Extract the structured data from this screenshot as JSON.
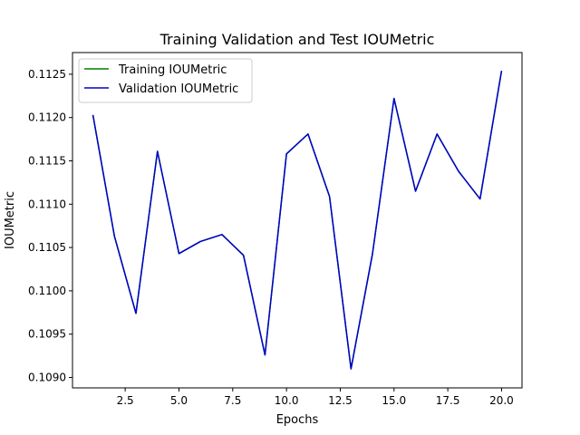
{
  "chart_data": {
    "type": "line",
    "title": "Training Validation and Test IOUMetric",
    "xlabel": "Epochs",
    "ylabel": "IOUMetric",
    "xlim": [
      0.05,
      20.95
    ],
    "ylim": [
      0.10888,
      0.11275
    ],
    "x_ticks": [
      2.5,
      5.0,
      7.5,
      10.0,
      12.5,
      15.0,
      17.5,
      20.0
    ],
    "x_tick_labels": [
      "2.5",
      "5.0",
      "7.5",
      "10.0",
      "12.5",
      "15.0",
      "17.5",
      "20.0"
    ],
    "y_ticks": [
      0.109,
      0.1095,
      0.11,
      0.1105,
      0.111,
      0.1115,
      0.112,
      0.1125
    ],
    "y_tick_labels": [
      "0.1090",
      "0.1095",
      "0.1100",
      "0.1105",
      "0.1110",
      "0.1115",
      "0.1120",
      "0.1125"
    ],
    "grid": false,
    "legend_position": "top-left",
    "x": [
      1,
      2,
      3,
      4,
      5,
      6,
      7,
      8,
      9,
      10,
      11,
      12,
      13,
      14,
      15,
      16,
      17,
      18,
      19,
      20
    ],
    "series": [
      {
        "name": "Training IOUMetric",
        "color": "#008000",
        "values": [
          0.11203,
          0.11063,
          0.10974,
          0.11161,
          0.11043,
          0.11057,
          0.11065,
          0.11041,
          0.10926,
          0.11158,
          0.11181,
          0.11109,
          0.1091,
          0.11043,
          0.11222,
          0.11115,
          0.11181,
          0.11138,
          0.11106,
          0.11254
        ]
      },
      {
        "name": "Validation IOUMetric",
        "color": "#0000cc",
        "values": [
          0.11203,
          0.11063,
          0.10974,
          0.11161,
          0.11043,
          0.11057,
          0.11065,
          0.11041,
          0.10926,
          0.11158,
          0.11181,
          0.11109,
          0.1091,
          0.11043,
          0.11222,
          0.11115,
          0.11181,
          0.11138,
          0.11106,
          0.11254
        ]
      }
    ]
  }
}
